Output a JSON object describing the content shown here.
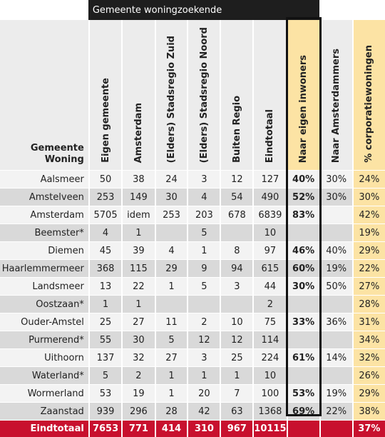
{
  "banner": "Gemeente woningzoekende",
  "corner": [
    "Gemeente",
    "Woning"
  ],
  "headers": [
    "Eigen gemeente",
    "Amsterdam",
    "(Elders) Stadsregio Zuid",
    "(Elders) Stadsregio Noord",
    "Buiten Regio",
    "Eindtotaal",
    "Naar eigen inwoners",
    "Naar Amsterdammers",
    "% corporatiewoningen"
  ],
  "highlight_color": "#fce3a4",
  "total_color": "#c8102e",
  "rows": [
    {
      "name": "Aalsmeer",
      "cells": [
        "50",
        "38",
        "24",
        "3",
        "12",
        "127",
        "40%",
        "30%",
        "24%"
      ]
    },
    {
      "name": "Amstelveen",
      "cells": [
        "253",
        "149",
        "30",
        "4",
        "54",
        "490",
        "52%",
        "30%",
        "30%"
      ]
    },
    {
      "name": "Amsterdam",
      "cells": [
        "5705",
        "idem",
        "253",
        "203",
        "678",
        "6839",
        "83%",
        "",
        "42%"
      ]
    },
    {
      "name": "Beemster*",
      "cells": [
        "4",
        "1",
        "",
        "5",
        "",
        "10",
        "",
        "",
        "19%"
      ]
    },
    {
      "name": "Diemen",
      "cells": [
        "45",
        "39",
        "4",
        "1",
        "8",
        "97",
        "46%",
        "40%",
        "29%"
      ]
    },
    {
      "name": "Haarlemmermeer",
      "cells": [
        "368",
        "115",
        "29",
        "9",
        "94",
        "615",
        "60%",
        "19%",
        "22%"
      ]
    },
    {
      "name": "Landsmeer",
      "cells": [
        "13",
        "22",
        "1",
        "5",
        "3",
        "44",
        "30%",
        "50%",
        "27%"
      ]
    },
    {
      "name": "Oostzaan*",
      "cells": [
        "1",
        "1",
        "",
        "",
        "",
        "2",
        "",
        "",
        "28%"
      ]
    },
    {
      "name": "Ouder-Amstel",
      "cells": [
        "25",
        "27",
        "11",
        "2",
        "10",
        "75",
        "33%",
        "36%",
        "31%"
      ]
    },
    {
      "name": "Purmerend*",
      "cells": [
        "55",
        "30",
        "5",
        "12",
        "12",
        "114",
        "",
        "",
        "34%"
      ]
    },
    {
      "name": "Uithoorn",
      "cells": [
        "137",
        "32",
        "27",
        "3",
        "25",
        "224",
        "61%",
        "14%",
        "32%"
      ]
    },
    {
      "name": "Waterland*",
      "cells": [
        "5",
        "2",
        "1",
        "1",
        "1",
        "10",
        "",
        "",
        "26%"
      ]
    },
    {
      "name": "Wormerland",
      "cells": [
        "53",
        "19",
        "1",
        "20",
        "7",
        "100",
        "53%",
        "19%",
        "29%"
      ]
    },
    {
      "name": "Zaanstad",
      "cells": [
        "939",
        "296",
        "28",
        "42",
        "63",
        "1368",
        "69%",
        "22%",
        "38%"
      ]
    }
  ],
  "total": {
    "name": "Eindtotaal",
    "cells": [
      "7653",
      "771",
      "414",
      "310",
      "967",
      "10115",
      "",
      "",
      "37%"
    ]
  }
}
